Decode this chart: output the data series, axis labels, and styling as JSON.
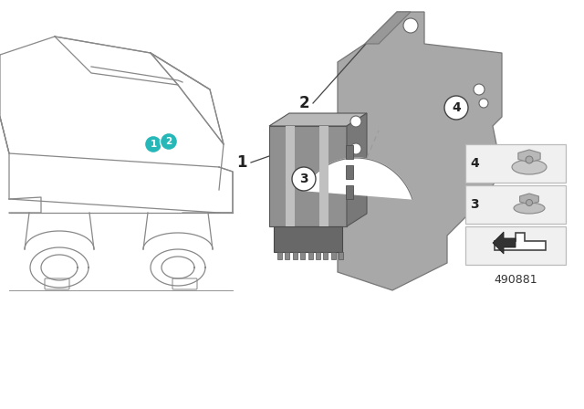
{
  "background_color": "#ffffff",
  "part_number": "490881",
  "car_line_color": "#888888",
  "car_lw": 0.9,
  "teal_color": "#26b8b8",
  "unit_face_color": "#909090",
  "unit_top_color": "#b8b8b8",
  "unit_right_color": "#787878",
  "unit_stripe_color": "#b0b0b0",
  "bracket_color": "#a8a8a8",
  "bracket_edge": "#777777",
  "label_color": "#222222",
  "thumb_bg": "#f0f0f0",
  "thumb_edge": "#bbbbbb",
  "leader_color": "#444444",
  "dashed_color": "#999999"
}
